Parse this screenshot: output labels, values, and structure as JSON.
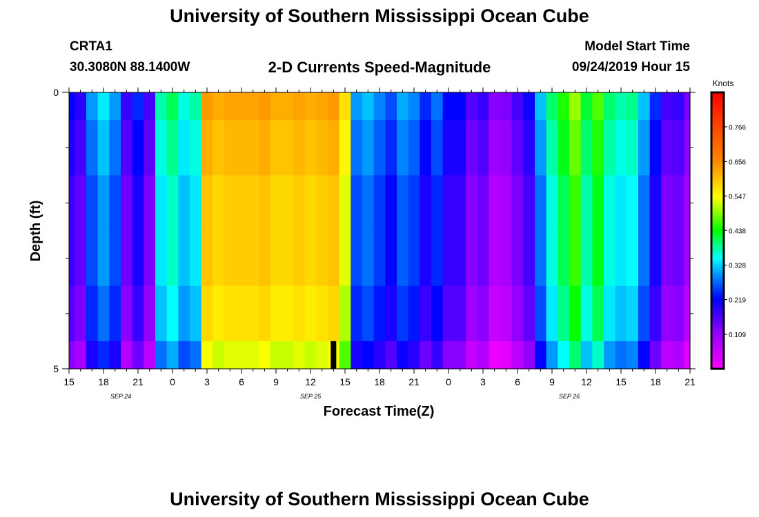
{
  "page_title": "University of Southern Mississippi Ocean Cube",
  "footer_title": "University of Southern Mississippi Ocean Cube",
  "station": {
    "id": "CRTA1",
    "coords": "30.3080N 88.1400W"
  },
  "product_title": "2-D Currents Speed-Magnitude",
  "model_start": {
    "label": "Model Start Time",
    "value": "09/24/2019 Hour 15"
  },
  "chart_data": {
    "type": "heatmap",
    "xlabel": "Forecast Time(Z)",
    "ylabel": "Depth (ft)",
    "x_tick_labels": [
      "15",
      "18",
      "21",
      "0",
      "3",
      "6",
      "9",
      "12",
      "15",
      "18",
      "21",
      "0",
      "3",
      "6",
      "9",
      "12",
      "15",
      "18",
      "21"
    ],
    "date_labels": [
      {
        "text": "SEP 24",
        "at_hour": 4.5
      },
      {
        "text": "SEP 25",
        "at_hour": 21
      },
      {
        "text": "SEP 26",
        "at_hour": 43.5
      }
    ],
    "x_range_hours": [
      0,
      54
    ],
    "y_tick_labels": [
      "0",
      "5"
    ],
    "y_range": [
      0,
      5
    ],
    "depth_bins": [
      0.0,
      0.5,
      1.5,
      2.5,
      3.5,
      4.5,
      5.0
    ],
    "colorbar": {
      "unit": "Knots",
      "ticks": [
        0.766,
        0.656,
        0.547,
        0.438,
        0.328,
        0.219,
        0.109
      ],
      "range": [
        0.0,
        0.875
      ]
    },
    "marker": {
      "hour": 23,
      "depth_from": 4.5,
      "depth_to": 5.0,
      "color": "#000000"
    },
    "hour_values": [
      0.2,
      0.17,
      0.28,
      0.32,
      0.28,
      0.16,
      0.22,
      0.15,
      0.36,
      0.39,
      0.34,
      0.36,
      0.62,
      0.6,
      0.61,
      0.61,
      0.61,
      0.62,
      0.6,
      0.6,
      0.61,
      0.6,
      0.61,
      0.62,
      0.55,
      0.28,
      0.3,
      0.27,
      0.24,
      0.29,
      0.27,
      0.22,
      0.26,
      0.2,
      0.2,
      0.14,
      0.16,
      0.1,
      0.11,
      0.15,
      0.19,
      0.3,
      0.38,
      0.43,
      0.48,
      0.4,
      0.45,
      0.38,
      0.36,
      0.37,
      0.3,
      0.22,
      0.15,
      0.16,
      0.11,
      0.15,
      0.21,
      0.56,
      0.62,
      0.66,
      0.68,
      0.7,
      0.7,
      0.69,
      0.66,
      0.64,
      0.3,
      0.2,
      0.21,
      0.24,
      0.17,
      0.22,
      0.16,
      0.5,
      0.52,
      0.55,
      0.25,
      0.13,
      0.33,
      0.3,
      0.43,
      0.46,
      0.48,
      0.44,
      0.42
    ],
    "depth_offsets": [
      0.02,
      0.0,
      -0.02,
      -0.02,
      -0.04,
      -0.08
    ]
  }
}
